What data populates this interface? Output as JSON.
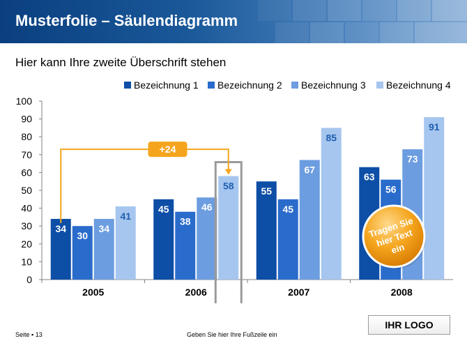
{
  "header": {
    "title": "Musterfolie – Säulendiagramm"
  },
  "subtitle": "Hier kann Ihre zweite Überschrift stehen",
  "footer": {
    "page": "Seite ▪ 13",
    "text": "Geben Sie hier Ihre Fußzeile ein"
  },
  "logo": "IHR LOGO",
  "sticker": {
    "lines": [
      "Tragen Sie",
      "hier Text",
      "ein"
    ]
  },
  "annotation": {
    "label": "+24"
  },
  "colors": {
    "s1": "#0d4ea6",
    "s2": "#2a6ccc",
    "s3": "#6c9de0",
    "s4": "#a6c6ef",
    "accent": "#f5a51d"
  },
  "chart_data": {
    "type": "bar",
    "categories": [
      "2005",
      "2006",
      "2007",
      "2008"
    ],
    "series": [
      {
        "name": "Bezeichnung 1",
        "values": [
          34,
          45,
          55,
          63
        ]
      },
      {
        "name": "Bezeichnung 2",
        "values": [
          30,
          38,
          45,
          56
        ]
      },
      {
        "name": "Bezeichnung 3",
        "values": [
          34,
          46,
          67,
          73
        ]
      },
      {
        "name": "Bezeichnung 4",
        "values": [
          41,
          58,
          85,
          91
        ]
      }
    ],
    "ylim": [
      0,
      100
    ],
    "yticks": [
      "0",
      "10",
      "20",
      "30",
      "40",
      "50",
      "60",
      "70",
      "80",
      "90",
      "100"
    ],
    "legend": "top-right",
    "grid": false
  }
}
